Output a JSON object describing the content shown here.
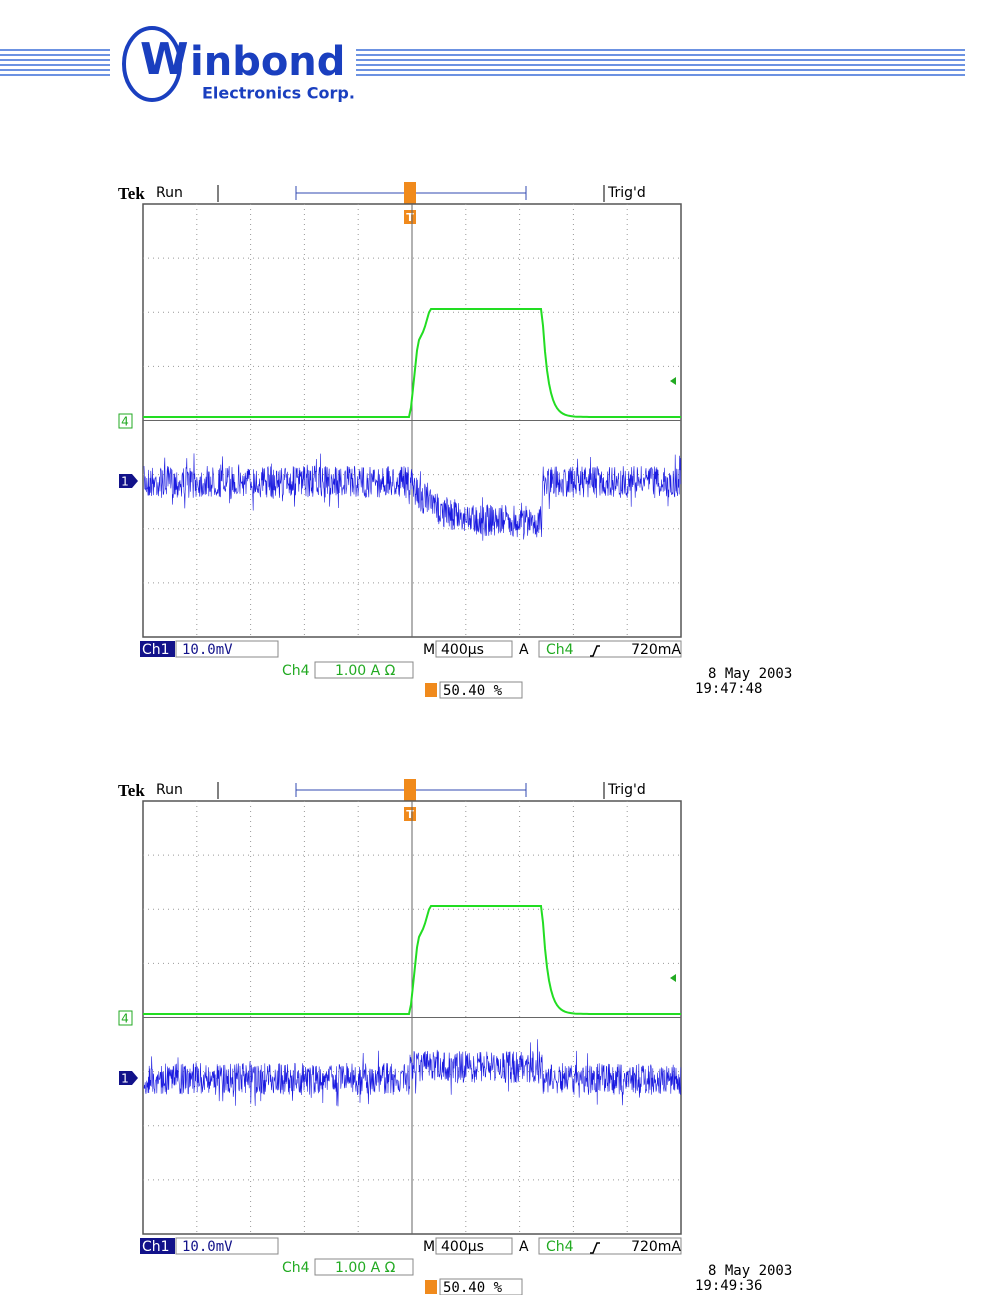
{
  "header": {
    "logo_text": "inbond",
    "logo_initial": "W",
    "subtitle": "Electronics Corp."
  },
  "scopes": [
    {
      "brand": "Tek",
      "status": "Run",
      "trigger_status": "Trig'd",
      "trigger_marker": "T",
      "ch4_marker": "4",
      "ch1_marker": "1",
      "ch1_label": "Ch1",
      "ch1_scale": "10.0mV",
      "time_prefix": "M",
      "timebase": "400µs",
      "trigger_prefix": "A",
      "trigger_source": "Ch4",
      "trigger_level": "720mA",
      "ch4_label": "Ch4",
      "ch4_scale": "1.00 A Ω",
      "trigger_position": "50.40 %",
      "date": "8 May 2003",
      "time": "19:47:48"
    },
    {
      "brand": "Tek",
      "status": "Run",
      "trigger_status": "Trig'd",
      "trigger_marker": "T",
      "ch4_marker": "4",
      "ch1_marker": "1",
      "ch1_label": "Ch1",
      "ch1_scale": "10.0mV",
      "time_prefix": "M",
      "timebase": "400µs",
      "trigger_prefix": "A",
      "trigger_source": "Ch4",
      "trigger_level": "720mA",
      "ch4_label": "Ch4",
      "ch4_scale": "1.00 A Ω",
      "trigger_position": "50.40 %",
      "date": "8 May 2003",
      "time": "19:49:36"
    }
  ]
}
